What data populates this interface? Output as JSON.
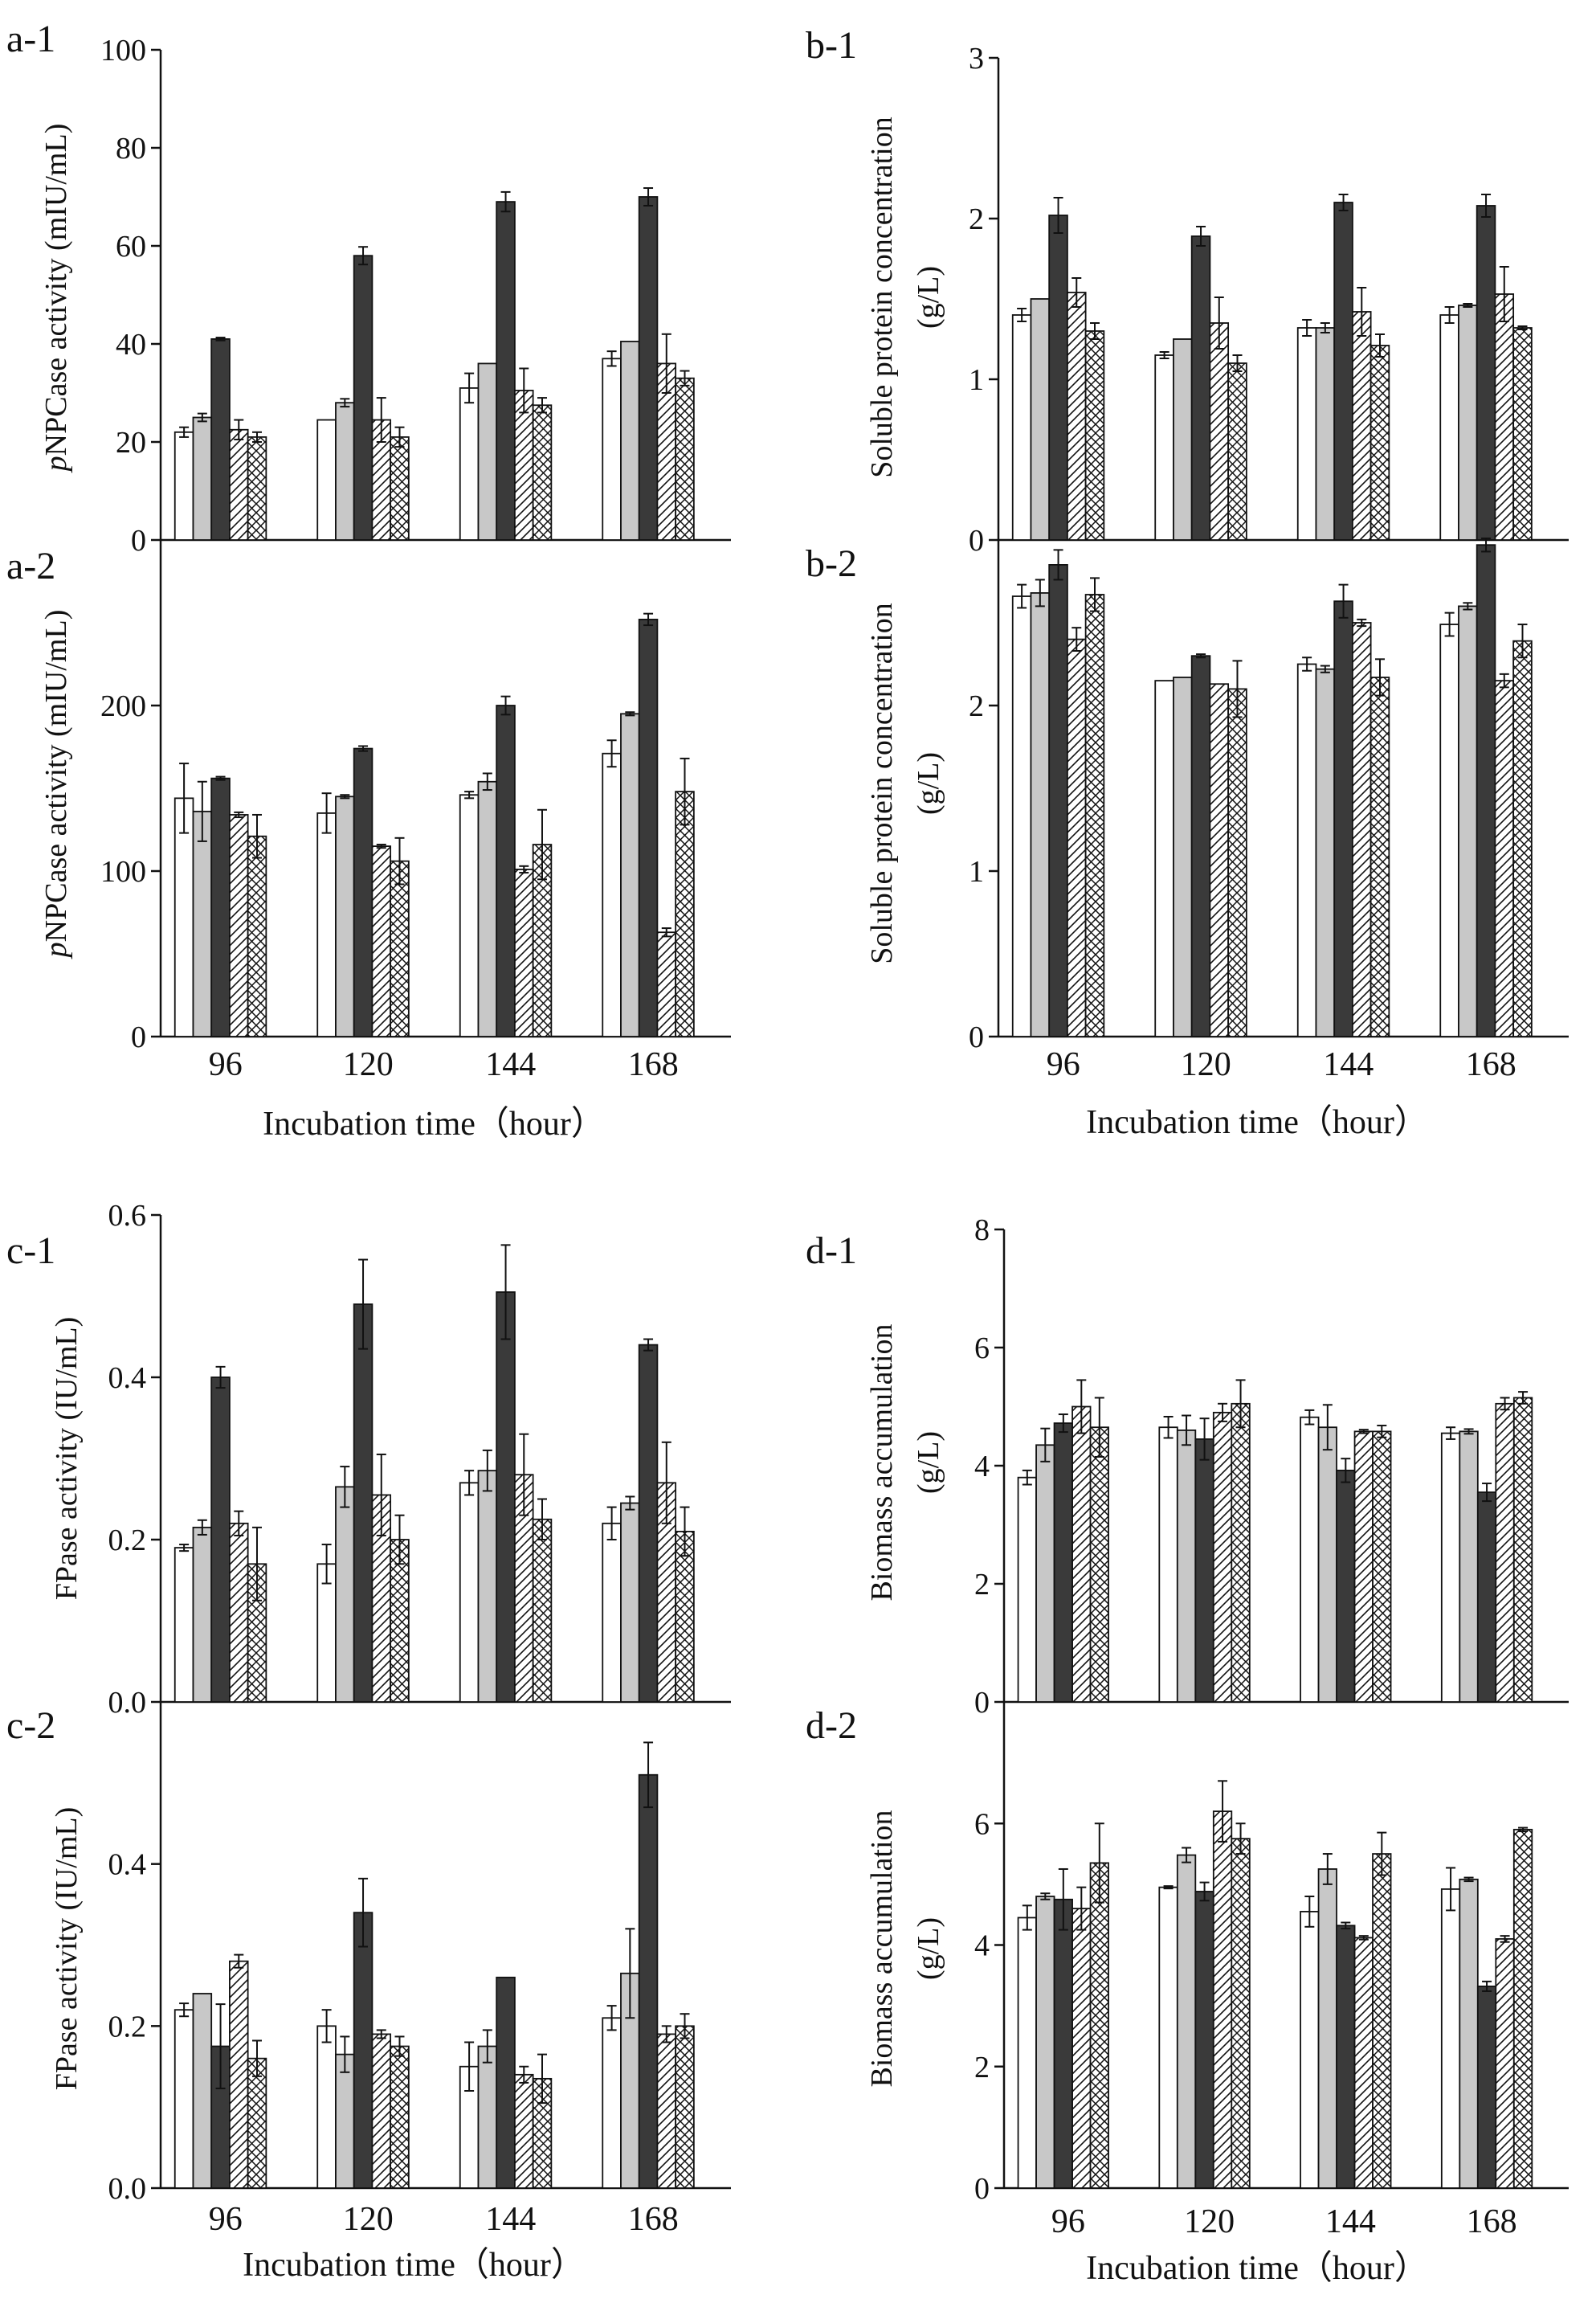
{
  "figure": {
    "x_axis_title_left": "Incubation time（hour）",
    "x_axis_title_right": "Incubation time（hour）",
    "x_axis_title_bottom_left": "Incubation time（hour）",
    "x_axis_title_bottom_right": "Incubation time（hour）"
  },
  "chart_data": [
    {
      "id": "a-1",
      "label": "a-1",
      "type": "bar",
      "ylabel": "pNPCase activity (mIU/mL)",
      "ylabel_italic_prefix": "p",
      "ylabel_rest": "NPCase activity (mIU/mL)",
      "ylim": [
        0,
        100
      ],
      "yticks": [
        "0",
        "20",
        "40",
        "60",
        "80",
        "100"
      ],
      "ytick_values": [
        0,
        20,
        40,
        60,
        80,
        100
      ],
      "categories": [
        "96",
        "120",
        "144",
        "168"
      ],
      "series": [
        {
          "name": "white",
          "pattern": "white",
          "values": [
            22,
            24.5,
            31,
            37
          ],
          "errors": [
            1,
            0,
            3,
            1.5
          ]
        },
        {
          "name": "light-grey",
          "pattern": "lightgrey",
          "values": [
            25,
            28,
            36,
            40.5
          ],
          "errors": [
            0.8,
            0.8,
            0,
            0
          ]
        },
        {
          "name": "dark-grey",
          "pattern": "dark",
          "values": [
            41,
            58,
            69,
            70
          ],
          "errors": [
            0.3,
            1.8,
            2,
            1.8
          ]
        },
        {
          "name": "hatched",
          "pattern": "hatch",
          "values": [
            22.5,
            24.5,
            30.5,
            36
          ],
          "errors": [
            2,
            4.5,
            4.5,
            6
          ]
        },
        {
          "name": "cross-hatched",
          "pattern": "cross",
          "values": [
            21,
            21,
            27.5,
            33
          ],
          "errors": [
            1,
            2,
            1.5,
            1.5
          ]
        }
      ]
    },
    {
      "id": "a-2",
      "label": "a-2",
      "type": "bar",
      "ylabel": "pNPCase activity (mIU/mL)",
      "ylabel_italic_prefix": "p",
      "ylabel_rest": "NPCase activity (mIU/mL)",
      "ylim": [
        0,
        300
      ],
      "yticks": [
        "0",
        "100",
        "200"
      ],
      "ytick_values": [
        0,
        100,
        200
      ],
      "categories": [
        "96",
        "120",
        "144",
        "168"
      ],
      "xlabels": [
        "96",
        "120",
        "144",
        "168"
      ],
      "series": [
        {
          "name": "white",
          "pattern": "white",
          "values": [
            144,
            135,
            146,
            171
          ],
          "errors": [
            21,
            12,
            2,
            8
          ]
        },
        {
          "name": "light-grey",
          "pattern": "lightgrey",
          "values": [
            136,
            145,
            154,
            195
          ],
          "errors": [
            18,
            1,
            5,
            1
          ]
        },
        {
          "name": "dark-grey",
          "pattern": "dark",
          "values": [
            156,
            174,
            200,
            252
          ],
          "errors": [
            1,
            1.5,
            5.5,
            3.5
          ]
        },
        {
          "name": "hatched",
          "pattern": "hatch",
          "values": [
            134,
            115,
            101,
            63
          ],
          "errors": [
            1.5,
            1,
            2,
            2.5
          ]
        },
        {
          "name": "cross-hatched",
          "pattern": "cross",
          "values": [
            121,
            106,
            116,
            148
          ],
          "errors": [
            13,
            14,
            21,
            20
          ]
        }
      ]
    },
    {
      "id": "b-1",
      "label": "b-1",
      "type": "bar",
      "ylabel": "Soluble protein concentration (g/L)",
      "ylabel_line1": "Soluble protein concentration",
      "ylabel_line2": "(g/L)",
      "ylim": [
        0,
        3
      ],
      "yticks": [
        "0",
        "1",
        "2",
        "3"
      ],
      "ytick_values": [
        0,
        1,
        2,
        3
      ],
      "categories": [
        "96",
        "120",
        "144",
        "168"
      ],
      "series": [
        {
          "name": "white",
          "pattern": "white",
          "values": [
            1.4,
            1.15,
            1.32,
            1.4
          ],
          "errors": [
            0.04,
            0.02,
            0.05,
            0.05
          ]
        },
        {
          "name": "light-grey",
          "pattern": "lightgrey",
          "values": [
            1.5,
            1.25,
            1.32,
            1.46
          ],
          "errors": [
            0,
            0,
            0.03,
            0.01
          ]
        },
        {
          "name": "dark-grey",
          "pattern": "dark",
          "values": [
            2.02,
            1.89,
            2.1,
            2.08
          ],
          "errors": [
            0.11,
            0.06,
            0.05,
            0.07
          ]
        },
        {
          "name": "hatched",
          "pattern": "hatch",
          "values": [
            1.54,
            1.35,
            1.42,
            1.53
          ],
          "errors": [
            0.09,
            0.16,
            0.15,
            0.17
          ]
        },
        {
          "name": "cross-hatched",
          "pattern": "cross",
          "values": [
            1.3,
            1.1,
            1.21,
            1.32
          ],
          "errors": [
            0.05,
            0.05,
            0.07,
            0.01
          ]
        }
      ]
    },
    {
      "id": "b-2",
      "label": "b-2",
      "type": "bar",
      "ylabel": "Soluble protein concentration (g/L)",
      "ylabel_line1": "Soluble protein concentration",
      "ylabel_line2": "(g/L)",
      "ylim": [
        0,
        3
      ],
      "yticks": [
        "0",
        "1",
        "2"
      ],
      "ytick_values": [
        0,
        1,
        2
      ],
      "categories": [
        "96",
        "120",
        "144",
        "168"
      ],
      "xlabels": [
        "96",
        "120",
        "144",
        "168"
      ],
      "series": [
        {
          "name": "white",
          "pattern": "white",
          "values": [
            2.66,
            2.15,
            2.25,
            2.49
          ],
          "errors": [
            0.07,
            0,
            0.04,
            0.07
          ]
        },
        {
          "name": "light-grey",
          "pattern": "lightgrey",
          "values": [
            2.68,
            2.17,
            2.22,
            2.6
          ],
          "errors": [
            0.08,
            0,
            0.02,
            0.02
          ]
        },
        {
          "name": "dark-grey",
          "pattern": "dark",
          "values": [
            2.85,
            2.3,
            2.63,
            2.97
          ],
          "errors": [
            0.09,
            0.01,
            0.1,
            0.04
          ]
        },
        {
          "name": "hatched",
          "pattern": "hatch",
          "values": [
            2.4,
            2.13,
            2.5,
            2.15
          ],
          "errors": [
            0.07,
            0,
            0.02,
            0.04
          ]
        },
        {
          "name": "cross-hatched",
          "pattern": "cross",
          "values": [
            2.67,
            2.1,
            2.17,
            2.39
          ],
          "errors": [
            0.1,
            0.17,
            0.11,
            0.1
          ]
        }
      ]
    },
    {
      "id": "c-1",
      "label": "c-1",
      "type": "bar",
      "ylabel": "FPase activity (IU/mL)",
      "ylim": [
        0,
        0.6
      ],
      "yticks": [
        "0.0",
        "0.2",
        "0.4",
        "0.6"
      ],
      "ytick_values": [
        0,
        0.2,
        0.4,
        0.6
      ],
      "categories": [
        "96",
        "120",
        "144",
        "168"
      ],
      "series": [
        {
          "name": "white",
          "pattern": "white",
          "values": [
            0.19,
            0.17,
            0.27,
            0.22
          ],
          "errors": [
            0.004,
            0.024,
            0.015,
            0.02
          ]
        },
        {
          "name": "light-grey",
          "pattern": "lightgrey",
          "values": [
            0.215,
            0.265,
            0.285,
            0.245
          ],
          "errors": [
            0.009,
            0.025,
            0.025,
            0.008
          ]
        },
        {
          "name": "dark-grey",
          "pattern": "dark",
          "values": [
            0.4,
            0.49,
            0.505,
            0.44
          ],
          "errors": [
            0.013,
            0.055,
            0.058,
            0.007
          ]
        },
        {
          "name": "hatched",
          "pattern": "hatch",
          "values": [
            0.22,
            0.255,
            0.28,
            0.27
          ],
          "errors": [
            0.015,
            0.05,
            0.05,
            0.05
          ]
        },
        {
          "name": "cross-hatched",
          "pattern": "cross",
          "values": [
            0.17,
            0.2,
            0.225,
            0.21
          ],
          "errors": [
            0.045,
            0.03,
            0.025,
            0.03
          ]
        }
      ]
    },
    {
      "id": "c-2",
      "label": "c-2",
      "type": "bar",
      "ylabel": "FPase activity (IU/mL)",
      "ylim": [
        0,
        0.6
      ],
      "yticks": [
        "0.0",
        "0.2",
        "0.4"
      ],
      "ytick_values": [
        0,
        0.2,
        0.4
      ],
      "categories": [
        "96",
        "120",
        "144",
        "168"
      ],
      "xlabels": [
        "96",
        "120",
        "144",
        "168"
      ],
      "series": [
        {
          "name": "white",
          "pattern": "white",
          "values": [
            0.22,
            0.2,
            0.15,
            0.21
          ],
          "errors": [
            0.008,
            0.02,
            0.03,
            0.015
          ]
        },
        {
          "name": "light-grey",
          "pattern": "lightgrey",
          "values": [
            0.24,
            0.165,
            0.175,
            0.265
          ],
          "errors": [
            0,
            0.022,
            0.02,
            0.055
          ]
        },
        {
          "name": "dark-grey",
          "pattern": "dark",
          "values": [
            0.175,
            0.34,
            0.26,
            0.51
          ],
          "errors": [
            0.052,
            0.042,
            0,
            0.04
          ]
        },
        {
          "name": "hatched",
          "pattern": "hatch",
          "values": [
            0.28,
            0.19,
            0.14,
            0.19
          ],
          "errors": [
            0.008,
            0.005,
            0.01,
            0.01
          ]
        },
        {
          "name": "cross-hatched",
          "pattern": "cross",
          "values": [
            0.16,
            0.175,
            0.135,
            0.2
          ],
          "errors": [
            0.022,
            0.012,
            0.03,
            0.015
          ]
        }
      ]
    },
    {
      "id": "d-1",
      "label": "d-1",
      "type": "bar",
      "ylabel": "Biomass accumulation (g/L)",
      "ylabel_line1": "Biomass accumulation",
      "ylabel_line2": "(g/L)",
      "ylim": [
        0,
        8
      ],
      "yticks": [
        "0",
        "2",
        "4",
        "6",
        "8"
      ],
      "ytick_values": [
        0,
        2,
        4,
        6,
        8
      ],
      "categories": [
        "96",
        "120",
        "144",
        "168"
      ],
      "series": [
        {
          "name": "white",
          "pattern": "white",
          "values": [
            3.8,
            4.65,
            4.82,
            4.55
          ],
          "errors": [
            0.12,
            0.18,
            0.12,
            0.1
          ]
        },
        {
          "name": "light-grey",
          "pattern": "lightgrey",
          "values": [
            4.35,
            4.6,
            4.65,
            4.58
          ],
          "errors": [
            0.28,
            0.25,
            0.38,
            0.04
          ]
        },
        {
          "name": "dark-grey",
          "pattern": "dark",
          "values": [
            4.72,
            4.45,
            3.92,
            3.55
          ],
          "errors": [
            0.15,
            0.35,
            0.2,
            0.15
          ]
        },
        {
          "name": "hatched",
          "pattern": "hatch",
          "values": [
            5.0,
            4.9,
            4.58,
            5.05
          ],
          "errors": [
            0.45,
            0.15,
            0.03,
            0.1
          ]
        },
        {
          "name": "cross-hatched",
          "pattern": "cross",
          "values": [
            4.65,
            5.05,
            4.58,
            5.15
          ],
          "errors": [
            0.5,
            0.4,
            0.1,
            0.1
          ]
        }
      ]
    },
    {
      "id": "d-2",
      "label": "d-2",
      "type": "bar",
      "ylabel": "Biomass accumulation (g/L)",
      "ylabel_line1": "Biomass accumulation",
      "ylabel_line2": "(g/L)",
      "ylim": [
        0,
        8
      ],
      "yticks": [
        "0",
        "2",
        "4",
        "6"
      ],
      "ytick_values": [
        0,
        2,
        4,
        6
      ],
      "categories": [
        "96",
        "120",
        "144",
        "168"
      ],
      "xlabels": [
        "96",
        "120",
        "144",
        "168"
      ],
      "series": [
        {
          "name": "white",
          "pattern": "white",
          "values": [
            4.45,
            4.95,
            4.55,
            4.92
          ],
          "errors": [
            0.2,
            0.02,
            0.25,
            0.35
          ]
        },
        {
          "name": "light-grey",
          "pattern": "lightgrey",
          "values": [
            4.8,
            5.48,
            5.25,
            5.08
          ],
          "errors": [
            0.05,
            0.12,
            0.25,
            0.03
          ]
        },
        {
          "name": "dark-grey",
          "pattern": "dark",
          "values": [
            4.75,
            4.88,
            4.32,
            3.32
          ],
          "errors": [
            0.5,
            0.15,
            0.05,
            0.08
          ]
        },
        {
          "name": "hatched",
          "pattern": "hatch",
          "values": [
            4.6,
            6.2,
            4.12,
            4.1
          ],
          "errors": [
            0.35,
            0.5,
            0.03,
            0.05
          ]
        },
        {
          "name": "cross-hatched",
          "pattern": "cross",
          "values": [
            5.35,
            5.75,
            5.5,
            5.9
          ],
          "errors": [
            0.65,
            0.25,
            0.35,
            0.03
          ]
        }
      ]
    }
  ]
}
